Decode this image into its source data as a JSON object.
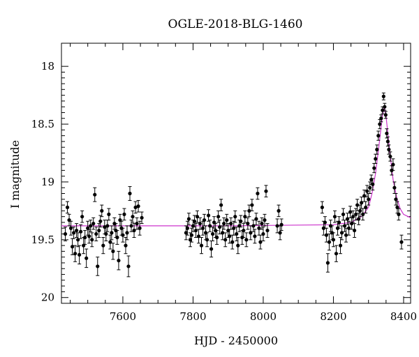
{
  "chart_data": {
    "type": "scatter",
    "title": "OGLE-2018-BLG-1460",
    "xlabel": "HJD - 2450000",
    "ylabel": "I magnitude",
    "xlim": [
      7425,
      8420
    ],
    "ylim": [
      20.05,
      17.8
    ],
    "y_inverted": true,
    "xticks": [
      "7600",
      "7800",
      "8000",
      "8200",
      "8400"
    ],
    "yticks": [
      "18",
      "18.5",
      "19",
      "19.5",
      "20"
    ],
    "colors": {
      "points": "#000000",
      "model": "#cc33cc"
    },
    "model_curve": {
      "name": "",
      "baseline": 19.38,
      "peak_time": 8345,
      "peak_mag": 18.35,
      "x": [
        7425,
        7900,
        8200,
        8250,
        8280,
        8300,
        8310,
        8320,
        8330,
        8340,
        8345,
        8350,
        8360,
        8370,
        8380,
        8390,
        8400,
        8420
      ],
      "y": [
        19.38,
        19.38,
        19.37,
        19.35,
        19.3,
        19.22,
        19.1,
        18.93,
        18.68,
        18.42,
        18.35,
        18.43,
        18.72,
        18.98,
        19.13,
        19.23,
        19.28,
        19.31
      ]
    },
    "series": [
      {
        "name": "",
        "points": [
          [
            7436,
            19.45,
            0.06
          ],
          [
            7442,
            19.22,
            0.05
          ],
          [
            7447,
            19.33,
            0.05
          ],
          [
            7452,
            19.4,
            0.06
          ],
          [
            7456,
            19.56,
            0.07
          ],
          [
            7460,
            19.44,
            0.05
          ],
          [
            7464,
            19.62,
            0.07
          ],
          [
            7468,
            19.42,
            0.06
          ],
          [
            7472,
            19.5,
            0.06
          ],
          [
            7476,
            19.63,
            0.08
          ],
          [
            7480,
            19.43,
            0.06
          ],
          [
            7484,
            19.3,
            0.05
          ],
          [
            7488,
            19.55,
            0.07
          ],
          [
            7492,
            19.48,
            0.06
          ],
          [
            7496,
            19.66,
            0.08
          ],
          [
            7500,
            19.4,
            0.06
          ],
          [
            7504,
            19.47,
            0.06
          ],
          [
            7508,
            19.38,
            0.05
          ],
          [
            7512,
            19.5,
            0.06
          ],
          [
            7516,
            19.36,
            0.05
          ],
          [
            7520,
            19.11,
            0.06
          ],
          [
            7524,
            19.45,
            0.06
          ],
          [
            7528,
            19.73,
            0.08
          ],
          [
            7532,
            19.42,
            0.06
          ],
          [
            7536,
            19.34,
            0.05
          ],
          [
            7540,
            19.25,
            0.05
          ],
          [
            7544,
            19.55,
            0.07
          ],
          [
            7548,
            19.39,
            0.06
          ],
          [
            7552,
            19.45,
            0.06
          ],
          [
            7556,
            19.38,
            0.05
          ],
          [
            7560,
            19.28,
            0.05
          ],
          [
            7564,
            19.52,
            0.06
          ],
          [
            7568,
            19.44,
            0.06
          ],
          [
            7572,
            19.6,
            0.07
          ],
          [
            7576,
            19.36,
            0.05
          ],
          [
            7580,
            19.42,
            0.06
          ],
          [
            7584,
            19.48,
            0.06
          ],
          [
            7588,
            19.68,
            0.08
          ],
          [
            7592,
            19.33,
            0.05
          ],
          [
            7596,
            19.4,
            0.06
          ],
          [
            7600,
            19.46,
            0.06
          ],
          [
            7604,
            19.28,
            0.05
          ],
          [
            7608,
            19.55,
            0.07
          ],
          [
            7612,
            19.44,
            0.06
          ],
          [
            7616,
            19.73,
            0.09
          ],
          [
            7620,
            19.1,
            0.06
          ],
          [
            7624,
            19.38,
            0.05
          ],
          [
            7628,
            19.3,
            0.05
          ],
          [
            7632,
            19.42,
            0.06
          ],
          [
            7636,
            19.22,
            0.05
          ],
          [
            7640,
            19.36,
            0.05
          ],
          [
            7644,
            19.21,
            0.05
          ],
          [
            7648,
            19.4,
            0.06
          ],
          [
            7654,
            19.31,
            0.05
          ],
          [
            7780,
            19.44,
            0.06
          ],
          [
            7784,
            19.4,
            0.06
          ],
          [
            7788,
            19.32,
            0.05
          ],
          [
            7792,
            19.5,
            0.06
          ],
          [
            7796,
            19.46,
            0.06
          ],
          [
            7800,
            19.38,
            0.05
          ],
          [
            7804,
            19.34,
            0.05
          ],
          [
            7808,
            19.42,
            0.06
          ],
          [
            7812,
            19.3,
            0.05
          ],
          [
            7816,
            19.47,
            0.06
          ],
          [
            7820,
            19.36,
            0.05
          ],
          [
            7824,
            19.55,
            0.07
          ],
          [
            7828,
            19.4,
            0.06
          ],
          [
            7832,
            19.33,
            0.05
          ],
          [
            7836,
            19.44,
            0.06
          ],
          [
            7840,
            19.5,
            0.06
          ],
          [
            7844,
            19.29,
            0.05
          ],
          [
            7848,
            19.38,
            0.05
          ],
          [
            7852,
            19.58,
            0.07
          ],
          [
            7856,
            19.45,
            0.06
          ],
          [
            7860,
            19.35,
            0.05
          ],
          [
            7864,
            19.42,
            0.06
          ],
          [
            7868,
            19.48,
            0.06
          ],
          [
            7872,
            19.3,
            0.05
          ],
          [
            7876,
            19.39,
            0.06
          ],
          [
            7880,
            19.2,
            0.05
          ],
          [
            7884,
            19.44,
            0.06
          ],
          [
            7888,
            19.36,
            0.05
          ],
          [
            7892,
            19.5,
            0.06
          ],
          [
            7896,
            19.33,
            0.05
          ],
          [
            7900,
            19.42,
            0.06
          ],
          [
            7904,
            19.47,
            0.06
          ],
          [
            7908,
            19.36,
            0.05
          ],
          [
            7912,
            19.52,
            0.06
          ],
          [
            7916,
            19.4,
            0.06
          ],
          [
            7920,
            19.3,
            0.05
          ],
          [
            7924,
            19.45,
            0.06
          ],
          [
            7928,
            19.55,
            0.07
          ],
          [
            7932,
            19.38,
            0.05
          ],
          [
            7936,
            19.34,
            0.05
          ],
          [
            7940,
            19.48,
            0.06
          ],
          [
            7944,
            19.42,
            0.06
          ],
          [
            7948,
            19.3,
            0.05
          ],
          [
            7952,
            19.5,
            0.06
          ],
          [
            7956,
            19.36,
            0.05
          ],
          [
            7960,
            19.25,
            0.05
          ],
          [
            7964,
            19.44,
            0.06
          ],
          [
            7968,
            19.2,
            0.05
          ],
          [
            7972,
            19.38,
            0.05
          ],
          [
            7976,
            19.47,
            0.06
          ],
          [
            7980,
            19.32,
            0.05
          ],
          [
            7984,
            19.1,
            0.05
          ],
          [
            7988,
            19.4,
            0.06
          ],
          [
            7992,
            19.52,
            0.06
          ],
          [
            7996,
            19.36,
            0.05
          ],
          [
            8000,
            19.45,
            0.06
          ],
          [
            8004,
            19.33,
            0.05
          ],
          [
            8008,
            19.08,
            0.05
          ],
          [
            8012,
            19.42,
            0.06
          ],
          [
            8040,
            19.38,
            0.06
          ],
          [
            8044,
            19.25,
            0.05
          ],
          [
            8048,
            19.44,
            0.06
          ],
          [
            8052,
            19.37,
            0.05
          ],
          [
            8168,
            19.22,
            0.05
          ],
          [
            8172,
            19.4,
            0.06
          ],
          [
            8176,
            19.35,
            0.05
          ],
          [
            8180,
            19.46,
            0.06
          ],
          [
            8184,
            19.7,
            0.08
          ],
          [
            8188,
            19.52,
            0.07
          ],
          [
            8192,
            19.38,
            0.05
          ],
          [
            8196,
            19.44,
            0.06
          ],
          [
            8200,
            19.5,
            0.06
          ],
          [
            8204,
            19.3,
            0.05
          ],
          [
            8208,
            19.62,
            0.07
          ],
          [
            8212,
            19.4,
            0.06
          ],
          [
            8216,
            19.35,
            0.05
          ],
          [
            8220,
            19.55,
            0.07
          ],
          [
            8224,
            19.44,
            0.06
          ],
          [
            8228,
            19.28,
            0.05
          ],
          [
            8232,
            19.38,
            0.05
          ],
          [
            8236,
            19.46,
            0.06
          ],
          [
            8240,
            19.32,
            0.05
          ],
          [
            8244,
            19.4,
            0.06
          ],
          [
            8248,
            19.26,
            0.05
          ],
          [
            8252,
            19.36,
            0.05
          ],
          [
            8256,
            19.3,
            0.05
          ],
          [
            8260,
            19.42,
            0.06
          ],
          [
            8264,
            19.28,
            0.05
          ],
          [
            8268,
            19.2,
            0.05
          ],
          [
            8272,
            19.32,
            0.05
          ],
          [
            8276,
            19.25,
            0.05
          ],
          [
            8280,
            19.18,
            0.05
          ],
          [
            8284,
            19.28,
            0.05
          ],
          [
            8288,
            19.12,
            0.05
          ],
          [
            8292,
            19.22,
            0.05
          ],
          [
            8296,
            19.08,
            0.05
          ],
          [
            8300,
            19.15,
            0.05
          ],
          [
            8304,
            19.05,
            0.05
          ],
          [
            8308,
            18.98,
            0.04
          ],
          [
            8312,
            19.02,
            0.05
          ],
          [
            8316,
            18.88,
            0.04
          ],
          [
            8320,
            18.8,
            0.04
          ],
          [
            8324,
            18.72,
            0.04
          ],
          [
            8328,
            18.6,
            0.04
          ],
          [
            8332,
            18.5,
            0.04
          ],
          [
            8336,
            18.45,
            0.03
          ],
          [
            8340,
            18.38,
            0.03
          ],
          [
            8343,
            18.26,
            0.03
          ],
          [
            8346,
            18.35,
            0.03
          ],
          [
            8349,
            18.42,
            0.03
          ],
          [
            8352,
            18.58,
            0.04
          ],
          [
            8355,
            18.65,
            0.04
          ],
          [
            8358,
            18.72,
            0.04
          ],
          [
            8362,
            18.78,
            0.04
          ],
          [
            8366,
            18.9,
            0.04
          ],
          [
            8370,
            18.85,
            0.05
          ],
          [
            8374,
            19.05,
            0.05
          ],
          [
            8378,
            19.15,
            0.05
          ],
          [
            8382,
            19.22,
            0.05
          ],
          [
            8386,
            19.28,
            0.05
          ],
          [
            8394,
            19.52,
            0.06
          ]
        ]
      }
    ]
  }
}
